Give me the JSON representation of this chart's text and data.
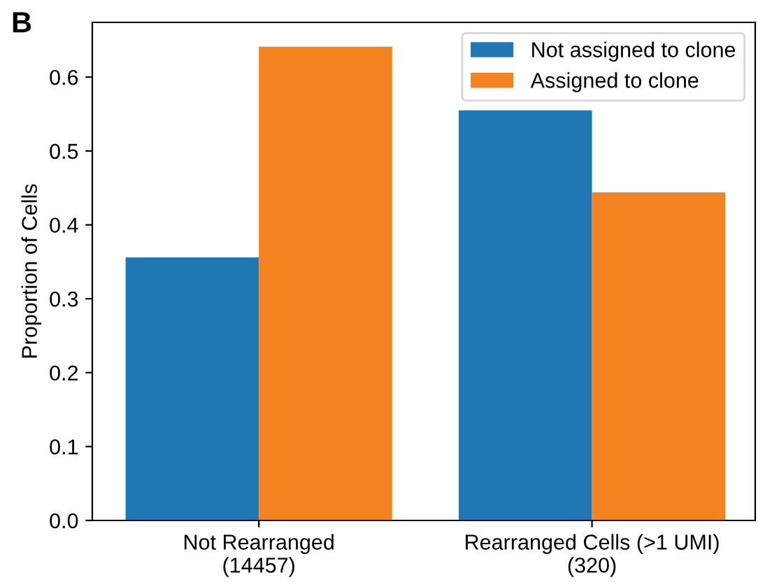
{
  "chart_data": {
    "type": "bar",
    "categories": [
      "Not Rearranged\n(14457)",
      "Rearranged Cells (>1 UMI)\n(320)"
    ],
    "series": [
      {
        "name": "Not assigned to clone",
        "color": "#1f77b4",
        "values": [
          0.356,
          0.555
        ]
      },
      {
        "name": "Assigned to clone",
        "color": "#f58220",
        "values": [
          0.641,
          0.444
        ]
      }
    ],
    "ylabel": "Proportion of Cells",
    "ylim": [
      0,
      0.674
    ],
    "yticks": [
      {
        "value": 0,
        "label": "0.0"
      },
      0.1,
      0.2,
      0.3,
      0.4,
      0.5,
      0.6
    ],
    "annotations": [
      "B"
    ],
    "legend": "top right",
    "grid": false
  }
}
